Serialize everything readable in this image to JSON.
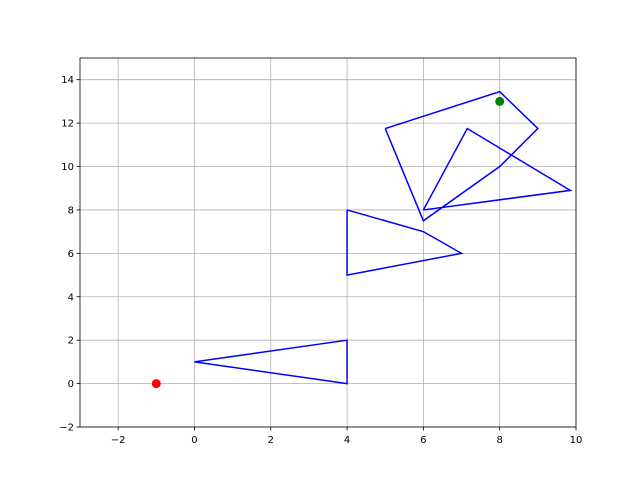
{
  "chart_data": {
    "type": "line",
    "title": "",
    "xlabel": "",
    "ylabel": "",
    "xlim": [
      -3,
      10
    ],
    "ylim": [
      -2,
      15
    ],
    "xticks": [
      -2,
      0,
      2,
      4,
      6,
      8,
      10
    ],
    "yticks": [
      -2,
      0,
      2,
      4,
      6,
      8,
      10,
      12,
      14
    ],
    "grid": true,
    "series": [
      {
        "color": "#0000ff",
        "points": [
          [
            0,
            1
          ],
          [
            4,
            2
          ],
          [
            4,
            0
          ],
          [
            0,
            1
          ]
        ]
      },
      {
        "color": "#0000ff",
        "points": [
          [
            4,
            8
          ],
          [
            6,
            7
          ],
          [
            7,
            6
          ],
          [
            4,
            5
          ],
          [
            4,
            8
          ]
        ]
      },
      {
        "color": "#0000ff",
        "points": [
          [
            5,
            11.75
          ],
          [
            8,
            13.45
          ],
          [
            9,
            11.75
          ],
          [
            8,
            10
          ],
          [
            6,
            7.5
          ],
          [
            5,
            11.75
          ]
        ]
      },
      {
        "color": "#0000ff",
        "points": [
          [
            6,
            8
          ],
          [
            7.15,
            11.75
          ],
          [
            9.85,
            8.9
          ],
          [
            6,
            8
          ]
        ]
      }
    ],
    "markers": [
      {
        "x": -1,
        "y": 0,
        "color": "#ff0000"
      },
      {
        "x": 8,
        "y": 13,
        "color": "#008000"
      }
    ]
  }
}
